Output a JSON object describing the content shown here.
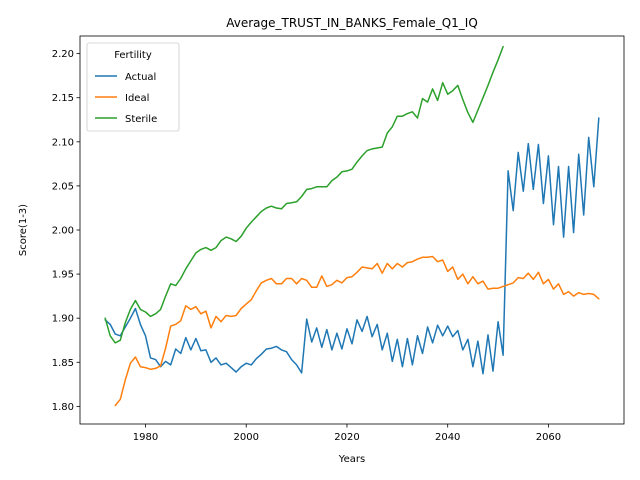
{
  "chart_data": {
    "type": "line",
    "title": "Average_TRUST_IN_BANKS_Female_Q1_IQ",
    "xlabel": "Years",
    "ylabel": "Score(1-3)",
    "xlim": [
      1967,
      2075
    ],
    "ylim": [
      1.78,
      2.22
    ],
    "xticks": [
      1980,
      2000,
      2020,
      2040,
      2060
    ],
    "yticks": [
      1.8,
      1.85,
      1.9,
      1.95,
      2.0,
      2.05,
      2.1,
      2.15,
      2.2
    ],
    "grid": false,
    "legend": {
      "title": "Fertility",
      "position": "top-left"
    },
    "series": [
      {
        "name": "Actual",
        "color": "#1f77b4",
        "x": [
          1972,
          1973,
          1974,
          1975,
          1976,
          1977,
          1978,
          1979,
          1980,
          1981,
          1982,
          1983,
          1984,
          1985,
          1986,
          1987,
          1988,
          1989,
          1990,
          1991,
          1992,
          1993,
          1994,
          1995,
          1996,
          1997,
          1998,
          1999,
          2000,
          2001,
          2002,
          2003,
          2004,
          2005,
          2006,
          2007,
          2008,
          2009,
          2010,
          2011,
          2012,
          2013,
          2014,
          2015,
          2016,
          2017,
          2018,
          2019,
          2020,
          2021,
          2022,
          2023,
          2024,
          2025,
          2026,
          2027,
          2028,
          2029,
          2030,
          2031,
          2032,
          2033,
          2034,
          2035,
          2036,
          2037,
          2038,
          2039,
          2040,
          2041,
          2042,
          2043,
          2044,
          2045,
          2046,
          2047,
          2048,
          2049,
          2050,
          2051,
          2052,
          2053,
          2054,
          2055,
          2056,
          2057,
          2058,
          2059,
          2060,
          2061,
          2062,
          2063,
          2064,
          2065,
          2066,
          2067,
          2068,
          2069,
          2070
        ],
        "y": [
          1.898,
          1.893,
          1.882,
          1.88,
          1.89,
          1.9,
          1.911,
          1.893,
          1.88,
          1.855,
          1.853,
          1.845,
          1.851,
          1.847,
          1.865,
          1.86,
          1.878,
          1.864,
          1.877,
          1.863,
          1.864,
          1.85,
          1.855,
          1.847,
          1.849,
          1.844,
          1.839,
          1.845,
          1.849,
          1.847,
          1.854,
          1.859,
          1.865,
          1.866,
          1.868,
          1.864,
          1.862,
          1.853,
          1.847,
          1.838,
          1.899,
          1.873,
          1.889,
          1.867,
          1.887,
          1.864,
          1.883,
          1.865,
          1.888,
          1.871,
          1.898,
          1.885,
          1.902,
          1.879,
          1.893,
          1.864,
          1.883,
          1.851,
          1.876,
          1.845,
          1.877,
          1.847,
          1.88,
          1.86,
          1.89,
          1.872,
          1.892,
          1.88,
          1.891,
          1.879,
          1.886,
          1.864,
          1.876,
          1.845,
          1.874,
          1.837,
          1.881,
          1.84,
          1.896,
          1.858,
          2.067,
          2.022,
          2.088,
          2.044,
          2.098,
          2.046,
          2.097,
          2.03,
          2.084,
          2.006,
          2.072,
          1.992,
          2.072,
          1.997,
          2.086,
          2.017,
          2.105,
          2.049,
          2.127
        ]
      },
      {
        "name": "Ideal",
        "color": "#ff7f0e",
        "x": [
          1974,
          1975,
          1976,
          1977,
          1978,
          1979,
          1980,
          1981,
          1982,
          1983,
          1984,
          1985,
          1986,
          1987,
          1988,
          1989,
          1990,
          1991,
          1992,
          1993,
          1994,
          1995,
          1996,
          1997,
          1998,
          1999,
          2000,
          2001,
          2002,
          2003,
          2004,
          2005,
          2006,
          2007,
          2008,
          2009,
          2010,
          2011,
          2012,
          2013,
          2014,
          2015,
          2016,
          2017,
          2018,
          2019,
          2020,
          2021,
          2022,
          2023,
          2024,
          2025,
          2026,
          2027,
          2028,
          2029,
          2030,
          2031,
          2032,
          2033,
          2034,
          2035,
          2036,
          2037,
          2038,
          2039,
          2040,
          2041,
          2042,
          2043,
          2044,
          2045,
          2046,
          2047,
          2048,
          2049,
          2050,
          2051,
          2052,
          2053,
          2054,
          2055,
          2056,
          2057,
          2058,
          2059,
          2060,
          2061,
          2062,
          2063,
          2064,
          2065,
          2066,
          2067,
          2068,
          2069,
          2070
        ],
        "y": [
          1.801,
          1.808,
          1.83,
          1.849,
          1.856,
          1.845,
          1.844,
          1.842,
          1.843,
          1.846,
          1.866,
          1.891,
          1.893,
          1.897,
          1.914,
          1.91,
          1.913,
          1.905,
          1.908,
          1.889,
          1.902,
          1.896,
          1.903,
          1.902,
          1.903,
          1.911,
          1.916,
          1.921,
          1.931,
          1.94,
          1.943,
          1.945,
          1.939,
          1.939,
          1.945,
          1.945,
          1.939,
          1.945,
          1.943,
          1.935,
          1.935,
          1.948,
          1.936,
          1.938,
          1.943,
          1.94,
          1.946,
          1.947,
          1.952,
          1.958,
          1.957,
          1.956,
          1.962,
          1.951,
          1.962,
          1.956,
          1.962,
          1.958,
          1.963,
          1.964,
          1.967,
          1.969,
          1.969,
          1.97,
          1.964,
          1.966,
          1.953,
          1.958,
          1.944,
          1.95,
          1.939,
          1.947,
          1.939,
          1.942,
          1.933,
          1.934,
          1.934,
          1.936,
          1.938,
          1.94,
          1.946,
          1.945,
          1.951,
          1.944,
          1.952,
          1.939,
          1.944,
          1.933,
          1.939,
          1.927,
          1.93,
          1.925,
          1.929,
          1.927,
          1.928,
          1.927,
          1.922
        ]
      },
      {
        "name": "Sterile",
        "color": "#2ca02c",
        "x": [
          1972,
          1973,
          1974,
          1975,
          1976,
          1977,
          1978,
          1979,
          1980,
          1981,
          1982,
          1983,
          1984,
          1985,
          1986,
          1987,
          1988,
          1989,
          1990,
          1991,
          1992,
          1993,
          1994,
          1995,
          1996,
          1997,
          1998,
          1999,
          2000,
          2001,
          2002,
          2003,
          2004,
          2005,
          2006,
          2007,
          2008,
          2009,
          2010,
          2011,
          2012,
          2013,
          2014,
          2015,
          2016,
          2017,
          2018,
          2019,
          2020,
          2021,
          2022,
          2023,
          2024,
          2025,
          2026,
          2027,
          2028,
          2029,
          2030,
          2031,
          2032,
          2033,
          2034,
          2035,
          2036,
          2037,
          2038,
          2039,
          2040,
          2041,
          2042,
          2043,
          2044,
          2045,
          2046,
          2047,
          2048,
          2049,
          2050,
          2051
        ],
        "y": [
          1.9,
          1.88,
          1.872,
          1.875,
          1.895,
          1.91,
          1.92,
          1.91,
          1.907,
          1.902,
          1.905,
          1.91,
          1.925,
          1.939,
          1.937,
          1.945,
          1.956,
          1.965,
          1.974,
          1.978,
          1.98,
          1.977,
          1.98,
          1.988,
          1.992,
          1.99,
          1.987,
          1.993,
          2.002,
          2.009,
          2.015,
          2.021,
          2.025,
          2.027,
          2.025,
          2.024,
          2.03,
          2.031,
          2.032,
          2.038,
          2.046,
          2.047,
          2.049,
          2.049,
          2.049,
          2.056,
          2.06,
          2.066,
          2.067,
          2.069,
          2.077,
          2.084,
          2.09,
          2.092,
          2.093,
          2.094,
          2.11,
          2.117,
          2.129,
          2.129,
          2.132,
          2.134,
          2.127,
          2.149,
          2.145,
          2.16,
          2.147,
          2.167,
          2.154,
          2.158,
          2.164,
          2.148,
          2.133,
          2.122,
          2.136,
          2.15,
          2.164,
          2.179,
          2.193,
          2.208
        ]
      }
    ]
  }
}
